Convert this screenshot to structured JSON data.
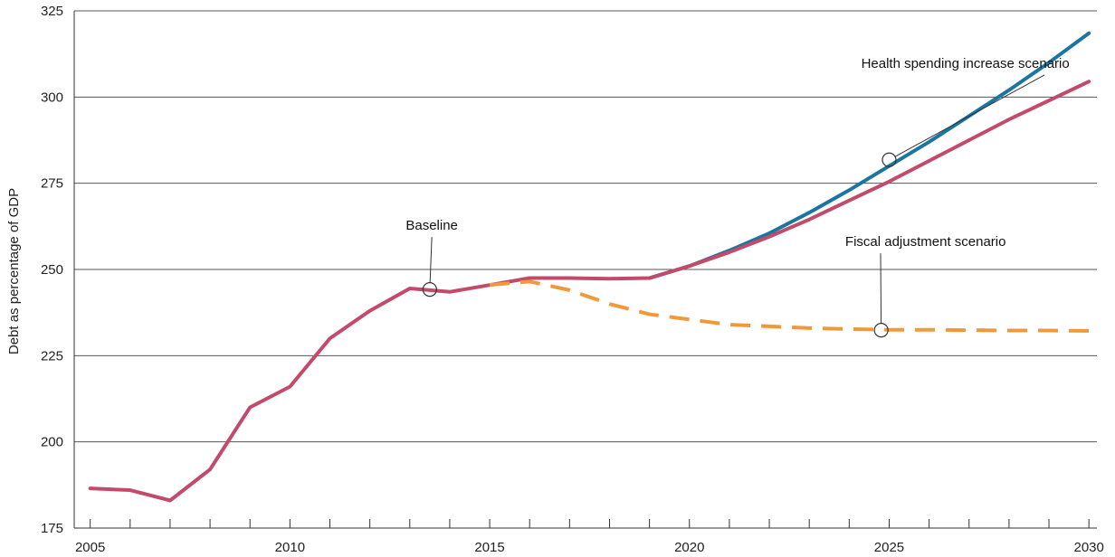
{
  "chart_data": {
    "type": "line",
    "title": "",
    "xlabel": "",
    "ylabel": "Debt as percentage of GDP",
    "xlim": [
      2004.6,
      2030.2
    ],
    "ylim": [
      175,
      325
    ],
    "x_ticks": [
      2005,
      2010,
      2015,
      2020,
      2025,
      2030
    ],
    "y_ticks": [
      175,
      200,
      225,
      250,
      275,
      300,
      325
    ],
    "grid": "horizontal",
    "series": [
      {
        "name": "Health spending increase scenario",
        "color": "#1a76a0",
        "style": "solid",
        "x": [
          2019,
          2020,
          2021,
          2022,
          2023,
          2024,
          2025,
          2026,
          2027,
          2028,
          2029,
          2030
        ],
        "y": [
          247.5,
          251,
          255.5,
          260.5,
          266.5,
          273,
          280,
          287,
          294.5,
          302,
          310,
          318.5
        ]
      },
      {
        "name": "Baseline",
        "color": "#c24a6a",
        "style": "solid",
        "x": [
          2005,
          2006,
          2007,
          2008,
          2009,
          2010,
          2011,
          2012,
          2013,
          2014,
          2015,
          2016,
          2017,
          2018,
          2019,
          2020,
          2021,
          2022,
          2023,
          2024,
          2025,
          2026,
          2027,
          2028,
          2029,
          2030
        ],
        "y": [
          186.5,
          186,
          183,
          192,
          210,
          216,
          230,
          238,
          244.5,
          243.5,
          245.5,
          247.5,
          247.5,
          247.3,
          247.5,
          251,
          255,
          259.5,
          264.5,
          270,
          275.5,
          281.5,
          287.5,
          293.5,
          299,
          304.5
        ]
      },
      {
        "name": "Fiscal adjustment scenario",
        "color": "#f0993a",
        "style": "dashed",
        "x": [
          2015,
          2016,
          2017,
          2018,
          2019,
          2020,
          2021,
          2022,
          2023,
          2024,
          2025,
          2026,
          2027,
          2028,
          2029,
          2030
        ],
        "y": [
          245.5,
          246.5,
          244,
          240,
          237,
          235.5,
          234,
          233.5,
          233,
          232.7,
          232.5,
          232.5,
          232.4,
          232.3,
          232.3,
          232.2
        ]
      }
    ],
    "annotations": [
      {
        "text": "Health spending increase scenario",
        "series": 0,
        "x": 2025.0,
        "y": 281.8,
        "label_x": 2024.3,
        "label_y": 308.5,
        "anchor": "start"
      },
      {
        "text": "Baseline",
        "series": 1,
        "x": 2013.5,
        "y": 244.2,
        "label_x": 2012.9,
        "label_y": 261.5,
        "anchor": "start"
      },
      {
        "text": "Fiscal adjustment scenario",
        "series": 2,
        "x": 2024.8,
        "y": 232.4,
        "label_x": 2023.9,
        "label_y": 256.8,
        "anchor": "start"
      }
    ]
  }
}
